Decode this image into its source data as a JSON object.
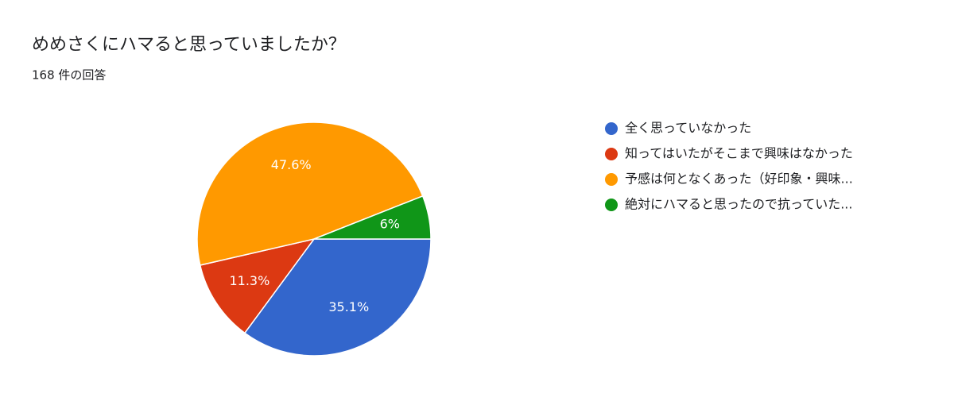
{
  "chart_data": {
    "type": "pie",
    "title": "めめさくにハマると思っていましたか？",
    "subtitle": "168 件の回答",
    "categories": [
      "全く思っていなかった",
      "知ってはいたがそこまで興味はなかった",
      "予感は何となくあった（好印象・興味...",
      "絶対にハマると思ったので抗っていた..."
    ],
    "values": [
      35.1,
      11.3,
      47.6,
      6
    ],
    "value_labels": [
      "35.1%",
      "11.3%",
      "47.6%",
      "6%"
    ],
    "colors": [
      "#3366cc",
      "#dc3912",
      "#ff9900",
      "#109618"
    ],
    "legend": "right"
  }
}
